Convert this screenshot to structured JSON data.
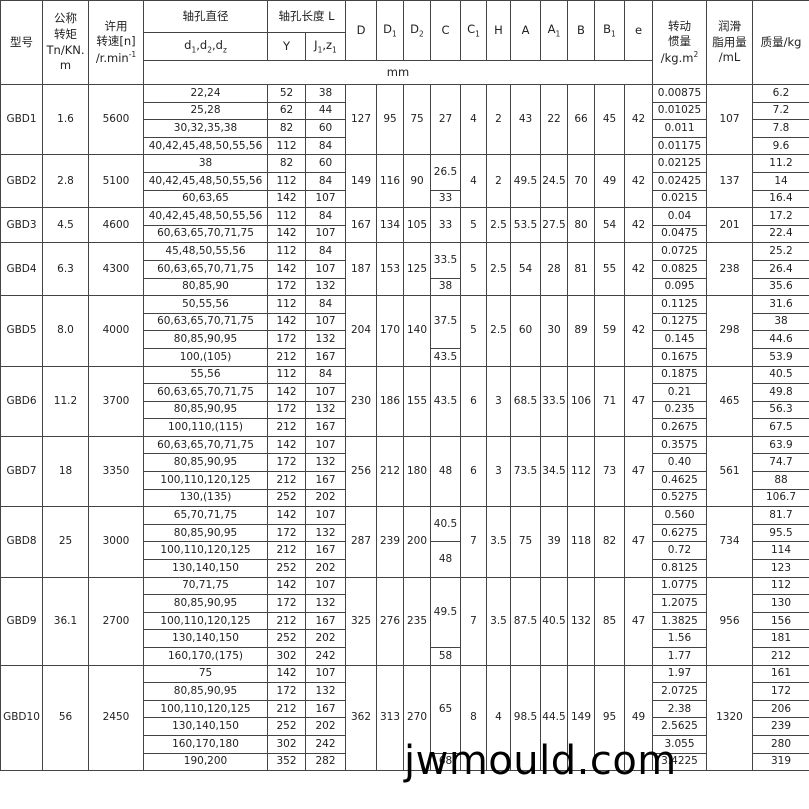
{
  "header": {
    "model": [
      [
        "型号"
      ]
    ],
    "torque": [
      [
        "公称"
      ],
      [
        "转矩"
      ],
      [
        "Tn/KN."
      ],
      [
        "m"
      ]
    ],
    "speed": [
      [
        "许用"
      ],
      [
        "转速[n]"
      ],
      [
        "/r.min",
        {
          "sup": "-1"
        }
      ]
    ],
    "bore_title": [
      [
        "轴孔直径"
      ]
    ],
    "length_title": [
      [
        "轴孔长度 L"
      ]
    ],
    "D": [
      [
        "D"
      ]
    ],
    "D1": [
      [
        "D",
        {
          "sub": "1"
        }
      ]
    ],
    "D2": [
      [
        "D",
        {
          "sub": "2"
        }
      ]
    ],
    "C": [
      [
        "C"
      ]
    ],
    "C1": [
      [
        "C",
        {
          "sub": "1"
        }
      ]
    ],
    "H": [
      [
        "H"
      ]
    ],
    "A": [
      [
        "A"
      ]
    ],
    "A1": [
      [
        "A",
        {
          "sub": "1"
        }
      ]
    ],
    "B": [
      [
        "B"
      ]
    ],
    "B1": [
      [
        "B",
        {
          "sub": "1"
        }
      ]
    ],
    "e": [
      [
        "e"
      ]
    ],
    "inertia": [
      [
        "转动"
      ],
      [
        "惯量"
      ],
      [
        "/kg.m",
        {
          "sup": "2"
        }
      ]
    ],
    "grease": [
      [
        "润滑"
      ],
      [
        "脂用量"
      ],
      [
        "/mL"
      ]
    ],
    "mass": [
      [
        "质量/kg"
      ]
    ],
    "bore": [
      [
        "d",
        {
          "sub": "1"
        },
        ",d",
        {
          "sub": "2"
        },
        ",d",
        {
          "sub": "z"
        }
      ]
    ],
    "Y": [
      [
        "Y"
      ]
    ],
    "J": [
      [
        "J",
        {
          "sub": "1"
        },
        ",z",
        {
          "sub": "1"
        }
      ]
    ],
    "unit": "mm"
  },
  "groups": [
    {
      "model": "GBD1",
      "torque": "1.6",
      "speed": "5600",
      "shafts": [
        [
          "22,24",
          "52",
          "38"
        ],
        [
          "25,28",
          "62",
          "44"
        ],
        [
          "30,32,35,38",
          "82",
          "60"
        ],
        [
          "40,42,45,48,50,55,56",
          "112",
          "84"
        ]
      ],
      "D": "127",
      "D1": "95",
      "D2": "75",
      "C": [
        "27",
        null,
        null,
        null
      ],
      "C1": "4",
      "H": "2",
      "A": "43",
      "A1": "22",
      "B": "66",
      "B1": "45",
      "e": "42",
      "inertia": [
        "0.00875",
        "0.01025",
        "0.011",
        "0.01175"
      ],
      "grease": "107",
      "mass": [
        "6.2",
        "7.2",
        "7.8",
        "9.6"
      ]
    },
    {
      "model": "GBD2",
      "torque": "2.8",
      "speed": "5100",
      "shafts": [
        [
          "38",
          "82",
          "60"
        ],
        [
          "40,42,45,48,50,55,56",
          "112",
          "84"
        ],
        [
          "60,63,65",
          "142",
          "107"
        ]
      ],
      "D": "149",
      "D1": "116",
      "D2": "90",
      "C": [
        "26.5",
        null,
        "33"
      ],
      "C1": "4",
      "H": "2",
      "A": "49.5",
      "A1": "24.5",
      "B": "70",
      "B1": "49",
      "e": "42",
      "inertia": [
        "0.02125",
        "0.02425",
        "0.0215"
      ],
      "grease": "137",
      "mass": [
        "11.2",
        "14",
        "16.4"
      ]
    },
    {
      "model": "GBD3",
      "torque": "4.5",
      "speed": "4600",
      "shafts": [
        [
          "40,42,45,48,50,55,56",
          "112",
          "84"
        ],
        [
          "60,63,65,70,71,75",
          "142",
          "107"
        ]
      ],
      "D": "167",
      "D1": "134",
      "D2": "105",
      "C": [
        "33",
        null
      ],
      "C1": "5",
      "H": "2.5",
      "A": "53.5",
      "A1": "27.5",
      "B": "80",
      "B1": "54",
      "e": "42",
      "inertia": [
        "0.04",
        "0.0475"
      ],
      "grease": "201",
      "mass": [
        "17.2",
        "22.4"
      ]
    },
    {
      "model": "GBD4",
      "torque": "6.3",
      "speed": "4300",
      "shafts": [
        [
          "45,48,50,55,56",
          "112",
          "84"
        ],
        [
          "60,63,65,70,71,75",
          "142",
          "107"
        ],
        [
          "80,85,90",
          "172",
          "132"
        ]
      ],
      "D": "187",
      "D1": "153",
      "D2": "125",
      "C": [
        "33.5",
        null,
        "38"
      ],
      "C1": "5",
      "H": "2.5",
      "A": "54",
      "A1": "28",
      "B": "81",
      "B1": "55",
      "e": "42",
      "inertia": [
        "0.0725",
        "0.0825",
        "0.095"
      ],
      "grease": "238",
      "mass": [
        "25.2",
        "26.4",
        "35.6"
      ]
    },
    {
      "model": "GBD5",
      "torque": "8.0",
      "speed": "4000",
      "shafts": [
        [
          "50,55,56",
          "112",
          "84"
        ],
        [
          "60,63,65,70,71,75",
          "142",
          "107"
        ],
        [
          "80,85,90,95",
          "172",
          "132"
        ],
        [
          "100,(105)",
          "212",
          "167"
        ]
      ],
      "D": "204",
      "D1": "170",
      "D2": "140",
      "C": [
        "37.5",
        null,
        null,
        "43.5"
      ],
      "C1": "5",
      "H": "2.5",
      "A": "60",
      "A1": "30",
      "B": "89",
      "B1": "59",
      "e": "42",
      "inertia": [
        "0.1125",
        "0.1275",
        "0.145",
        "0.1675"
      ],
      "grease": "298",
      "mass": [
        "31.6",
        "38",
        "44.6",
        "53.9"
      ]
    },
    {
      "model": "GBD6",
      "torque": "11.2",
      "speed": "3700",
      "shafts": [
        [
          "55,56",
          "112",
          "84"
        ],
        [
          "60,63,65,70,71,75",
          "142",
          "107"
        ],
        [
          "80,85,90,95",
          "172",
          "132"
        ],
        [
          "100,110,(115)",
          "212",
          "167"
        ]
      ],
      "D": "230",
      "D1": "186",
      "D2": "155",
      "C": [
        "43.5",
        null,
        null,
        null
      ],
      "C1": "6",
      "H": "3",
      "A": "68.5",
      "A1": "33.5",
      "B": "106",
      "B1": "71",
      "e": "47",
      "inertia": [
        "0.1875",
        "0.21",
        "0.235",
        "0.2675"
      ],
      "grease": "465",
      "mass": [
        "40.5",
        "49.8",
        "56.3",
        "67.5"
      ]
    },
    {
      "model": "GBD7",
      "torque": "18",
      "speed": "3350",
      "shafts": [
        [
          "60,63,65,70,71,75",
          "142",
          "107"
        ],
        [
          "80,85,90,95",
          "172",
          "132"
        ],
        [
          "100,110,120,125",
          "212",
          "167"
        ],
        [
          "130,(135)",
          "252",
          "202"
        ]
      ],
      "D": "256",
      "D1": "212",
      "D2": "180",
      "C": [
        "48",
        null,
        null,
        null
      ],
      "C1": "6",
      "H": "3",
      "A": "73.5",
      "A1": "34.5",
      "B": "112",
      "B1": "73",
      "e": "47",
      "inertia": [
        "0.3575",
        "0.40",
        "0.4625",
        "0.5275"
      ],
      "grease": "561",
      "mass": [
        "63.9",
        "74.7",
        "88",
        "106.7"
      ]
    },
    {
      "model": "GBD8",
      "torque": "25",
      "speed": "3000",
      "shafts": [
        [
          "65,70,71,75",
          "142",
          "107"
        ],
        [
          "80,85,90,95",
          "172",
          "132"
        ],
        [
          "100,110,120,125",
          "212",
          "167"
        ],
        [
          "130,140,150",
          "252",
          "202"
        ]
      ],
      "D": "287",
      "D1": "239",
      "D2": "200",
      "C": [
        "40.5",
        null,
        "48",
        null
      ],
      "C1": "7",
      "H": "3.5",
      "A": "75",
      "A1": "39",
      "B": "118",
      "B1": "82",
      "e": "47",
      "inertia": [
        "0.560",
        "0.6275",
        "0.72",
        "0.8125"
      ],
      "grease": "734",
      "mass": [
        "81.7",
        "95.5",
        "114",
        "123"
      ]
    },
    {
      "model": "GBD9",
      "torque": "36.1",
      "speed": "2700",
      "shafts": [
        [
          "70,71,75",
          "142",
          "107"
        ],
        [
          "80,85,90,95",
          "172",
          "132"
        ],
        [
          "100,110,120,125",
          "212",
          "167"
        ],
        [
          "130,140,150",
          "252",
          "202"
        ],
        [
          "160,170,(175)",
          "302",
          "242"
        ]
      ],
      "D": "325",
      "D1": "276",
      "D2": "235",
      "C": [
        "49.5",
        null,
        null,
        null,
        "58"
      ],
      "C1": "7",
      "H": "3.5",
      "A": "87.5",
      "A1": "40.5",
      "B": "132",
      "B1": "85",
      "e": "47",
      "inertia": [
        "1.0775",
        "1.2075",
        "1.3825",
        "1.56",
        "1.77"
      ],
      "grease": "956",
      "mass": [
        "112",
        "130",
        "156",
        "181",
        "212"
      ]
    },
    {
      "model": "GBD10",
      "torque": "56",
      "speed": "2450",
      "shafts": [
        [
          "75",
          "142",
          "107"
        ],
        [
          "80,85,90,95",
          "172",
          "132"
        ],
        [
          "100,110,120,125",
          "212",
          "167"
        ],
        [
          "130,140,150",
          "252",
          "202"
        ],
        [
          "160,170,180",
          "302",
          "242"
        ],
        [
          "190,200",
          "352",
          "282"
        ]
      ],
      "D": "362",
      "D1": "313",
      "D2": "270",
      "C": [
        "65",
        null,
        null,
        null,
        null,
        "68"
      ],
      "C1": "8",
      "H": "4",
      "A": "98.5",
      "A1": "44.5",
      "B": "149",
      "B1": "95",
      "e": "49",
      "inertia": [
        "1.97",
        "2.0725",
        "2.38",
        "2.5625",
        "3.055",
        "3.4225"
      ],
      "grease": "1320",
      "mass": [
        "161",
        "172",
        "206",
        "239",
        "280",
        "319"
      ]
    }
  ],
  "watermark": "jwmould.com"
}
